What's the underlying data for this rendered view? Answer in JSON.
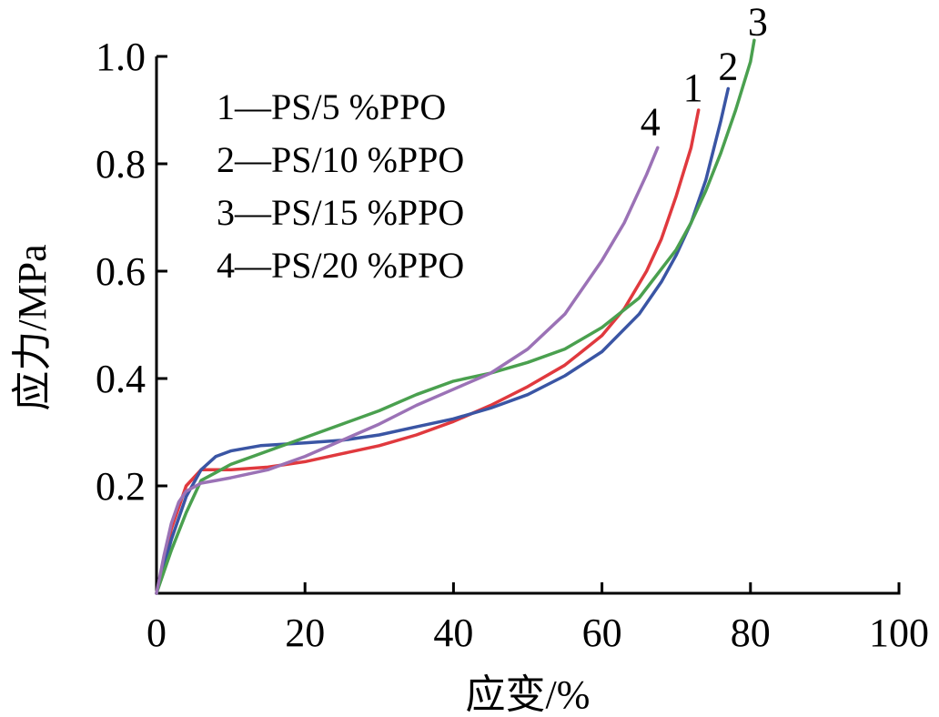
{
  "chart_data": {
    "type": "line",
    "title": "",
    "xlabel": "应变/%",
    "ylabel": "应力/MPa",
    "xlim": [
      0,
      100
    ],
    "ylim": [
      0,
      1.0
    ],
    "xticks": [
      0,
      20,
      40,
      60,
      80,
      100
    ],
    "xtick_labels": [
      "0",
      "20",
      "40",
      "60",
      "80",
      "100"
    ],
    "yticks": [
      0.2,
      0.4,
      0.6,
      0.8,
      1.0
    ],
    "ytick_labels": [
      "0.2",
      "0.4",
      "0.6",
      "0.8",
      "1.0"
    ],
    "grid": false,
    "legend_position": "top-left",
    "legend": [
      "1—PS/5 %PPO",
      "2—PS/10 %PPO",
      "3—PS/15 %PPO",
      "4—PS/20 %PPO"
    ],
    "series": [
      {
        "name": "1",
        "color": "#e0393e",
        "x": [
          0,
          2,
          4,
          6,
          8,
          10,
          15,
          20,
          25,
          30,
          35,
          40,
          45,
          50,
          55,
          60,
          63,
          66,
          68,
          70,
          72,
          73
        ],
        "y": [
          0,
          0.12,
          0.2,
          0.23,
          0.23,
          0.23,
          0.235,
          0.245,
          0.26,
          0.275,
          0.295,
          0.32,
          0.35,
          0.385,
          0.425,
          0.48,
          0.53,
          0.6,
          0.66,
          0.74,
          0.83,
          0.9
        ]
      },
      {
        "name": "2",
        "color": "#3a55a4",
        "x": [
          0,
          2,
          4,
          6,
          8,
          10,
          14,
          20,
          25,
          30,
          35,
          40,
          45,
          50,
          55,
          60,
          65,
          68,
          70,
          72,
          74,
          76,
          77
        ],
        "y": [
          0,
          0.1,
          0.18,
          0.23,
          0.255,
          0.265,
          0.275,
          0.28,
          0.285,
          0.295,
          0.31,
          0.325,
          0.345,
          0.37,
          0.405,
          0.45,
          0.52,
          0.58,
          0.63,
          0.69,
          0.77,
          0.88,
          0.94
        ]
      },
      {
        "name": "3",
        "color": "#4aa04f",
        "x": [
          0,
          2,
          4,
          6,
          8,
          10,
          15,
          20,
          25,
          30,
          35,
          40,
          45,
          50,
          55,
          60,
          65,
          70,
          72,
          74,
          76,
          78,
          80,
          80.5
        ],
        "y": [
          0,
          0.08,
          0.15,
          0.21,
          0.225,
          0.24,
          0.265,
          0.29,
          0.315,
          0.34,
          0.37,
          0.395,
          0.41,
          0.43,
          0.455,
          0.495,
          0.55,
          0.64,
          0.69,
          0.75,
          0.82,
          0.9,
          0.99,
          1.03
        ]
      },
      {
        "name": "4",
        "color": "#9b72b6",
        "x": [
          0,
          1,
          2,
          3,
          4,
          6,
          8,
          10,
          15,
          20,
          25,
          30,
          35,
          40,
          45,
          50,
          55,
          60,
          63,
          66,
          67.5
        ],
        "y": [
          0,
          0.07,
          0.13,
          0.17,
          0.19,
          0.205,
          0.21,
          0.215,
          0.23,
          0.255,
          0.285,
          0.315,
          0.35,
          0.38,
          0.41,
          0.455,
          0.52,
          0.62,
          0.69,
          0.78,
          0.83
        ]
      }
    ],
    "end_labels": [
      "1",
      "2",
      "3",
      "4"
    ]
  }
}
